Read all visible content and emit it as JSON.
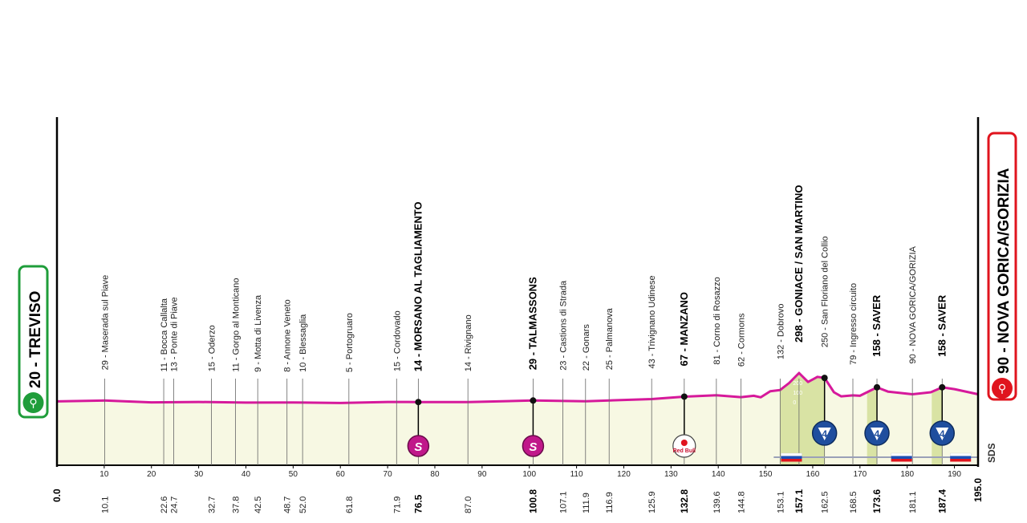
{
  "colors": {
    "profile_line": "#d6199b",
    "profile_fill": "#f7f8e3",
    "climb_fill": "#d9e3a4",
    "start_color": "#1f9d3a",
    "finish_color": "#e0141e",
    "sprint_color": "#c0188a",
    "kom_color": "#1f4e9e"
  },
  "start": {
    "label": "20 - TREVISO"
  },
  "finish": {
    "label": "90 - NOVA GORICA/GORIZIA"
  },
  "sds_label": "SDS",
  "chart_data": {
    "type": "area",
    "xlim": [
      0,
      195
    ],
    "x_ticks": [
      10,
      20,
      30,
      40,
      50,
      60,
      70,
      80,
      90,
      100,
      110,
      120,
      130,
      140,
      150,
      160,
      170,
      180,
      190
    ],
    "profile": [
      [
        0,
        20
      ],
      [
        10,
        29
      ],
      [
        20,
        11
      ],
      [
        30,
        15
      ],
      [
        40,
        9
      ],
      [
        50,
        10
      ],
      [
        60,
        5
      ],
      [
        70,
        15
      ],
      [
        76.5,
        14
      ],
      [
        87,
        14
      ],
      [
        100.8,
        29
      ],
      [
        111.9,
        22
      ],
      [
        125.9,
        43
      ],
      [
        132.8,
        67
      ],
      [
        139.6,
        81
      ],
      [
        144.8,
        62
      ],
      [
        147.5,
        75
      ],
      [
        149,
        60
      ],
      [
        151,
        120
      ],
      [
        153.1,
        132
      ],
      [
        155,
        200
      ],
      [
        157.1,
        298
      ],
      [
        159,
        210
      ],
      [
        161,
        260
      ],
      [
        162.5,
        250
      ],
      [
        164.5,
        110
      ],
      [
        166,
        70
      ],
      [
        168.5,
        79
      ],
      [
        170,
        75
      ],
      [
        173.6,
        158
      ],
      [
        176,
        115
      ],
      [
        181.1,
        90
      ],
      [
        185,
        110
      ],
      [
        187.4,
        158
      ],
      [
        190,
        140
      ],
      [
        195,
        90
      ]
    ],
    "climb_altitude_ticks": [
      "200",
      "100",
      "0"
    ],
    "climbs": [
      {
        "start": 153.1,
        "end": 162.5,
        "category": "4"
      },
      {
        "start": 171.5,
        "end": 173.6,
        "category": "4"
      },
      {
        "start": 185.2,
        "end": 187.4,
        "category": "4"
      }
    ],
    "sprints": [
      {
        "km": 76.5,
        "symbol": "S"
      },
      {
        "km": 100.8,
        "symbol": "S"
      }
    ],
    "special_points": [
      {
        "km": 132.8,
        "symbol": "Red Bull"
      }
    ],
    "flags": [
      {
        "km": 155.5
      },
      {
        "km": 178.8
      },
      {
        "km": 191.3
      }
    ],
    "waypoints": [
      {
        "km": 10.1,
        "km_label": "10.1",
        "label": "29 - Maserada sul Piave",
        "major": false
      },
      {
        "km": 22.6,
        "km_label": "22.6",
        "label": "11 - Bocca Callalta",
        "major": false
      },
      {
        "km": 24.7,
        "km_label": "24.7",
        "label": "13 - Ponte di Piave",
        "major": false
      },
      {
        "km": 32.7,
        "km_label": "32.7",
        "label": "15 - Oderzo",
        "major": false
      },
      {
        "km": 37.8,
        "km_label": "37.8",
        "label": "11 - Gorgo al Monticano",
        "major": false
      },
      {
        "km": 42.5,
        "km_label": "42.5",
        "label": "9 - Motta di Livenza",
        "major": false
      },
      {
        "km": 48.7,
        "km_label": "48.7",
        "label": "8 - Annone Veneto",
        "major": false
      },
      {
        "km": 52.0,
        "km_label": "52.0",
        "label": "10 - Blessaglia",
        "major": false
      },
      {
        "km": 61.8,
        "km_label": "61.8",
        "label": "5 - Portogruaro",
        "major": false
      },
      {
        "km": 71.9,
        "km_label": "71.9",
        "label": "15 - Cordovado",
        "major": false
      },
      {
        "km": 76.5,
        "km_label": "76.5",
        "label": "14 - MORSANO AL TAGLIAMENTO",
        "major": true
      },
      {
        "km": 87.0,
        "km_label": "87.0",
        "label": "14 - Rivignano",
        "major": false
      },
      {
        "km": 100.8,
        "km_label": "100.8",
        "label": "29 - TALMASSONS",
        "major": true
      },
      {
        "km": 107.1,
        "km_label": "107.1",
        "label": "23 - Castions di Strada",
        "major": false
      },
      {
        "km": 111.9,
        "km_label": "111.9",
        "label": "22 - Gonars",
        "major": false
      },
      {
        "km": 116.9,
        "km_label": "116.9",
        "label": "25 - Palmanova",
        "major": false
      },
      {
        "km": 125.9,
        "km_label": "125.9",
        "label": "43 - Trivignano Udinese",
        "major": false
      },
      {
        "km": 132.8,
        "km_label": "132.8",
        "label": "67 - MANZANO",
        "major": true
      },
      {
        "km": 139.6,
        "km_label": "139.6",
        "label": "81 - Corno di Rosazzo",
        "major": false
      },
      {
        "km": 144.8,
        "km_label": "144.8",
        "label": "62 - Cormons",
        "major": false
      },
      {
        "km": 153.1,
        "km_label": "153.1",
        "label": "132 - Dobrovo",
        "major": false
      },
      {
        "km": 157.1,
        "km_label": "157.1",
        "label": "298 - GONIACE / SAN MARTINO",
        "major": true
      },
      {
        "km": 162.5,
        "km_label": "162.5",
        "label": "250 - San Floriano del Collio",
        "major": false
      },
      {
        "km": 168.5,
        "km_label": "168.5",
        "label": "79 - Ingresso circuito",
        "major": false
      },
      {
        "km": 173.6,
        "km_label": "173.6",
        "label": "158 - SAVER",
        "major": true
      },
      {
        "km": 181.1,
        "km_label": "181.1",
        "label": "90 - NOVA GORICA/GORIZIA",
        "major": false
      },
      {
        "km": 187.4,
        "km_label": "187.4",
        "label": "158 - SAVER",
        "major": true
      }
    ],
    "end_labels": [
      {
        "km": 0,
        "km_label": "0.0"
      },
      {
        "km": 195,
        "km_label": "195.0"
      }
    ]
  }
}
